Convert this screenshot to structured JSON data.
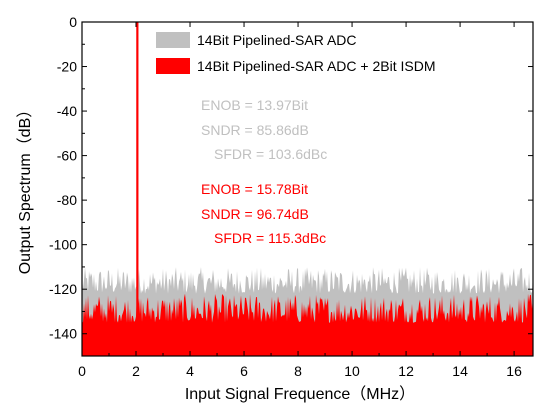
{
  "chart_data": {
    "type": "area",
    "xlabel": "Input Signal Frequence（MHz）",
    "ylabel": "Output Spectrum（dB）",
    "xlim": [
      0,
      16.7
    ],
    "ylim": [
      -150,
      0
    ],
    "xticks": [
      "0",
      "2",
      "4",
      "6",
      "8",
      "10",
      "12",
      "14",
      "16"
    ],
    "xtick_values": [
      0,
      2,
      4,
      6,
      8,
      10,
      12,
      14,
      16
    ],
    "yticks": [
      "0",
      "-20",
      "-40",
      "-60",
      "-80",
      "-100",
      "-120",
      "-140"
    ],
    "ytick_values": [
      0,
      -20,
      -40,
      -60,
      -80,
      -100,
      -120,
      -140
    ],
    "grid": false,
    "legend_position": "top-left",
    "series": [
      {
        "name": "14Bit Pipelined-SAR ADC",
        "color": "#c0c0c0",
        "noise_floor_range_db": [
          -122,
          -110
        ],
        "fundamental": {
          "x": 2.05,
          "y": 0
        }
      },
      {
        "name": "14Bit Pipelined-SAR ADC + 2Bit ISDM",
        "color": "#ff0000",
        "noise_floor_range_db": [
          -135,
          -122
        ],
        "fundamental": {
          "x": 2.05,
          "y": 0
        }
      }
    ],
    "annotations": [
      {
        "text": "ENOB = 13.97Bit",
        "color": "#c0c0c0"
      },
      {
        "text": "SNDR = 85.86dB",
        "color": "#c0c0c0"
      },
      {
        "text": "SFDR = 103.6dBc",
        "color": "#c0c0c0"
      },
      {
        "text": "ENOB = 15.78Bit",
        "color": "#ff0000"
      },
      {
        "text": "SNDR = 96.74dB",
        "color": "#ff0000"
      },
      {
        "text": "SFDR = 115.3dBc",
        "color": "#ff0000"
      }
    ]
  }
}
